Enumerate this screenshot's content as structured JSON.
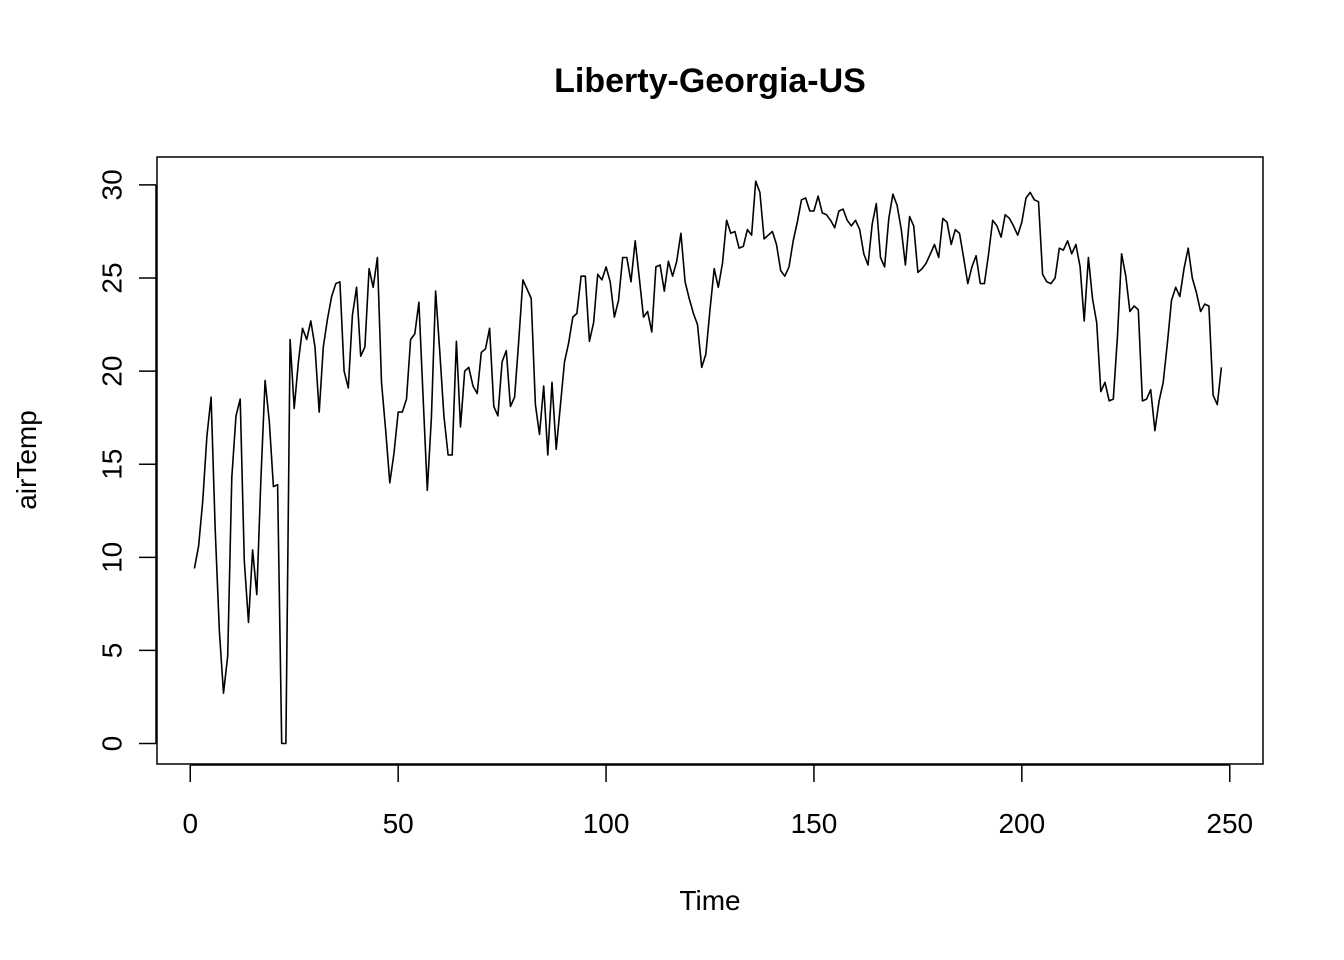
{
  "chart_data": {
    "type": "line",
    "title": "Liberty-Georgia-US",
    "xlabel": "Time",
    "ylabel": "airTemp",
    "xlim": [
      -8,
      258
    ],
    "ylim": [
      -1.1,
      31.5
    ],
    "xticks": [
      0,
      50,
      100,
      150,
      200,
      250
    ],
    "yticks": [
      0,
      5,
      10,
      15,
      20,
      25,
      30
    ],
    "grid": false,
    "line_color": "#000000",
    "series": [
      {
        "x": [
          1,
          2,
          3,
          4,
          5,
          6,
          7,
          8,
          9,
          10,
          11,
          12,
          13,
          14,
          15,
          16,
          17,
          18,
          19,
          20,
          21,
          22,
          23,
          24,
          25,
          26,
          27,
          28,
          29,
          30,
          31,
          32,
          33,
          34,
          35,
          36,
          37,
          38,
          39,
          40,
          41,
          42,
          43,
          44,
          45,
          46,
          47,
          48,
          49,
          50,
          51,
          52,
          53,
          54,
          55,
          56,
          57,
          58,
          59,
          60,
          61,
          62,
          63,
          64,
          65,
          66,
          67,
          68,
          69,
          70,
          71,
          72,
          73,
          74,
          75,
          76,
          77,
          78,
          79,
          80,
          81,
          82,
          83,
          84,
          85,
          86,
          87,
          88,
          89,
          90,
          91,
          92,
          93,
          94,
          95,
          96,
          97,
          98,
          99,
          100,
          101,
          102,
          103,
          104,
          105,
          106,
          107,
          108,
          109,
          110,
          111,
          112,
          113,
          114,
          115,
          116,
          117,
          118,
          119,
          120,
          121,
          122,
          123,
          124,
          125,
          126,
          127,
          128,
          129,
          130,
          131,
          132,
          133,
          134,
          135,
          136,
          137,
          138,
          139,
          140,
          141,
          142,
          143,
          144,
          145,
          146,
          147,
          148,
          149,
          150,
          151,
          152,
          153,
          154,
          155,
          156,
          157,
          158,
          159,
          160,
          161,
          162,
          163,
          164,
          165,
          166,
          167,
          168,
          169,
          170,
          171,
          172,
          173,
          174,
          175,
          176,
          177,
          178,
          179,
          180,
          181,
          182,
          183,
          184,
          185,
          186,
          187,
          188,
          189,
          190,
          191,
          192,
          193,
          194,
          195,
          196,
          197,
          198,
          199,
          200,
          201,
          202,
          203,
          204,
          205,
          206,
          207,
          208,
          209,
          210,
          211,
          212,
          213,
          214,
          215,
          216,
          217,
          218,
          219,
          220,
          221,
          222,
          223,
          224,
          225,
          226,
          227,
          228,
          229,
          230,
          231,
          232,
          233,
          234,
          235,
          236,
          237,
          238,
          239,
          240,
          241,
          242,
          243,
          244,
          245,
          246,
          247,
          248
        ],
        "values": [
          9.4,
          10.6,
          13,
          16.5,
          18.6,
          11.5,
          6,
          2.7,
          4.7,
          14.3,
          17.6,
          18.5,
          9.8,
          6.5,
          10.4,
          8,
          14.2,
          19.5,
          17.3,
          13.8,
          13.9,
          0,
          0,
          21.7,
          18,
          20.5,
          22.3,
          21.7,
          22.7,
          21.3,
          17.8,
          21.3,
          22.8,
          24,
          24.7,
          24.8,
          20,
          19.1,
          23,
          24.5,
          20.8,
          21.3,
          25.5,
          24.5,
          26.1,
          19.4,
          16.8,
          14,
          15.6,
          17.8,
          17.8,
          18.5,
          21.7,
          22,
          23.7,
          18.6,
          13.6,
          17.5,
          24.3,
          21.1,
          17.6,
          15.5,
          15.5,
          21.6,
          17,
          20,
          20.2,
          19.2,
          18.8,
          21,
          21.2,
          22.3,
          18.1,
          17.6,
          20.5,
          21.1,
          18.1,
          18.6,
          21.6,
          24.9,
          24.4,
          23.9,
          18.2,
          16.6,
          19.2,
          15.5,
          19.4,
          15.8,
          18.1,
          20.5,
          21.5,
          22.9,
          23.1,
          25.1,
          25.1,
          21.6,
          22.6,
          25.2,
          24.9,
          25.6,
          24.8,
          22.9,
          23.8,
          26.1,
          26.1,
          24.8,
          27,
          25,
          22.9,
          23.2,
          22.1,
          25.6,
          25.7,
          24.3,
          25.9,
          25.1,
          25.9,
          27.4,
          24.8,
          23.9,
          23.1,
          22.5,
          20.2,
          20.9,
          23.3,
          25.5,
          24.5,
          25.8,
          28.1,
          27.4,
          27.5,
          26.6,
          26.7,
          27.6,
          27.3,
          30.2,
          29.6,
          27.1,
          27.3,
          27.5,
          26.8,
          25.4,
          25.1,
          25.6,
          27,
          28,
          29.2,
          29.3,
          28.6,
          28.6,
          29.4,
          28.5,
          28.4,
          28.1,
          27.7,
          28.6,
          28.7,
          28.1,
          27.8,
          28.1,
          27.6,
          26.3,
          25.7,
          27.9,
          29,
          26.1,
          25.6,
          28.2,
          29.5,
          28.9,
          27.6,
          25.7,
          28.3,
          27.8,
          25.3,
          25.5,
          25.8,
          26.3,
          26.8,
          26.1,
          28.2,
          28,
          26.8,
          27.6,
          27.4,
          26.1,
          24.7,
          25.6,
          26.2,
          24.7,
          24.7,
          26.3,
          28.1,
          27.8,
          27.2,
          28.4,
          28.2,
          27.8,
          27.3,
          28,
          29.3,
          29.6,
          29.2,
          29.1,
          25.2,
          24.8,
          24.7,
          25,
          26.6,
          26.5,
          27,
          26.3,
          26.8,
          25.6,
          22.7,
          26.1,
          23.9,
          22.6,
          18.9,
          19.4,
          18.4,
          18.5,
          21.9,
          26.3,
          25.1,
          23.2,
          23.5,
          23.3,
          18.4,
          18.5,
          19,
          16.8,
          18.4,
          19.4,
          21.5,
          23.8,
          24.5,
          24,
          25.5,
          26.6,
          25,
          24.2,
          23.2,
          23.6,
          23.5,
          18.7,
          18.2,
          20.2
        ]
      }
    ]
  }
}
